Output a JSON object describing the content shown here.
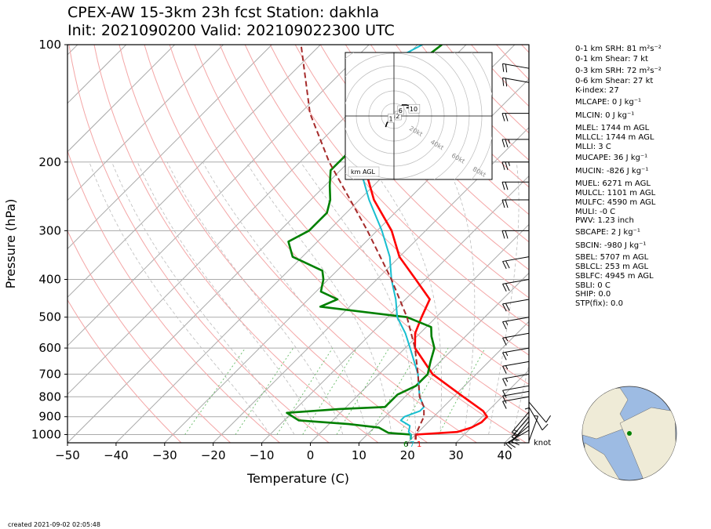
{
  "header": {
    "title_line1": "CPEX-AW 15-3km  23h fcst  Station: dakhla",
    "title_line2": "Init: 2021090200  Valid: 202109022300 UTC"
  },
  "footer": {
    "created": "created 2021-09-02 02:05:48"
  },
  "colors": {
    "temperature": "#ff0000",
    "dewpoint": "#008000",
    "wetbulb": "#17becf",
    "parcel": "#a52a2a",
    "isotherm": "#aaaaaa",
    "dry_adiabat": "#f4a6a6",
    "moist_adiabat": "#bbbbbb",
    "mixing_ratio": "#66bb66",
    "globe_water": "#9dbbe3",
    "globe_land": "#efebd7"
  },
  "chart_data": {
    "type": "line",
    "subtype": "skew-t log-p",
    "xlabel": "Temperature (C)",
    "ylabel": "Pressure (hPa)",
    "xlim": [
      -50,
      45
    ],
    "ylim": [
      1050,
      100
    ],
    "y_scale": "log",
    "x_ticks": [
      "−50",
      "−40",
      "−30",
      "−20",
      "−10",
      "0",
      "10",
      "20",
      "30",
      "40"
    ],
    "x_tick_values": [
      -50,
      -40,
      -30,
      -20,
      -10,
      0,
      10,
      20,
      30,
      40
    ],
    "y_ticks": [
      "100",
      "200",
      "300",
      "400",
      "500",
      "600",
      "700",
      "800",
      "900",
      "1000"
    ],
    "y_tick_values": [
      100,
      200,
      300,
      400,
      500,
      600,
      700,
      800,
      900,
      1000
    ],
    "grid": true,
    "series": [
      {
        "key": "temperature",
        "points": [
          [
            1030,
            21
          ],
          [
            1000,
            20
          ],
          [
            985,
            28
          ],
          [
            960,
            30
          ],
          [
            930,
            31
          ],
          [
            900,
            31
          ],
          [
            870,
            29
          ],
          [
            800,
            22
          ],
          [
            700,
            11
          ],
          [
            600,
            2
          ],
          [
            550,
            -1
          ],
          [
            500,
            -3
          ],
          [
            450,
            -5
          ],
          [
            400,
            -12
          ],
          [
            350,
            -20
          ],
          [
            300,
            -27
          ],
          [
            250,
            -37
          ],
          [
            200,
            -47
          ],
          [
            150,
            -59
          ],
          [
            125,
            -63
          ]
        ]
      },
      {
        "key": "dewpoint",
        "points": [
          [
            1030,
            20
          ],
          [
            1000,
            19
          ],
          [
            990,
            14
          ],
          [
            960,
            11
          ],
          [
            940,
            4
          ],
          [
            920,
            -7
          ],
          [
            880,
            -11
          ],
          [
            860,
            -1
          ],
          [
            850,
            8
          ],
          [
            820,
            8
          ],
          [
            790,
            8
          ],
          [
            750,
            10
          ],
          [
            700,
            10
          ],
          [
            650,
            8
          ],
          [
            600,
            6
          ],
          [
            560,
            3
          ],
          [
            530,
            1
          ],
          [
            500,
            -6
          ],
          [
            470,
            -26
          ],
          [
            450,
            -24
          ],
          [
            430,
            -29
          ],
          [
            400,
            -31
          ],
          [
            380,
            -33
          ],
          [
            350,
            -42
          ],
          [
            320,
            -46
          ],
          [
            300,
            -44
          ],
          [
            270,
            -44
          ],
          [
            250,
            -46
          ],
          [
            230,
            -49
          ],
          [
            210,
            -52
          ],
          [
            190,
            -52
          ],
          [
            160,
            -52
          ],
          [
            150,
            -58
          ],
          [
            130,
            -59
          ],
          [
            120,
            -57
          ],
          [
            110,
            -56
          ],
          [
            100,
            -55
          ]
        ]
      },
      {
        "key": "wetbulb",
        "points": [
          [
            1030,
            20
          ],
          [
            1000,
            19
          ],
          [
            985,
            18
          ],
          [
            950,
            17
          ],
          [
            920,
            14
          ],
          [
            900,
            14
          ],
          [
            870,
            16
          ],
          [
            850,
            16
          ],
          [
            800,
            13
          ],
          [
            700,
            8
          ],
          [
            600,
            1
          ],
          [
            550,
            -3
          ],
          [
            500,
            -8
          ],
          [
            450,
            -12
          ],
          [
            400,
            -17
          ],
          [
            350,
            -22
          ],
          [
            300,
            -29
          ],
          [
            250,
            -38
          ],
          [
            200,
            -48
          ],
          [
            150,
            -60
          ],
          [
            125,
            -64
          ],
          [
            110,
            -62
          ],
          [
            100,
            -59
          ]
        ]
      },
      {
        "key": "parcel",
        "dashed": true,
        "points": [
          [
            1030,
            21
          ],
          [
            1000,
            20
          ],
          [
            950,
            19
          ],
          [
            900,
            18
          ],
          [
            850,
            16
          ],
          [
            800,
            13
          ],
          [
            700,
            8
          ],
          [
            600,
            2
          ],
          [
            500,
            -6
          ],
          [
            400,
            -17
          ],
          [
            300,
            -32
          ],
          [
            200,
            -54
          ],
          [
            150,
            -68
          ],
          [
            100,
            -84
          ]
        ]
      }
    ],
    "surface_labels": {
      "dewpoint": "6",
      "wetbulb": "7",
      "temperature": "1"
    },
    "hodograph": {
      "labels": [
        "1",
        "2",
        "6",
        "10"
      ],
      "ring_labels": [
        "20kt",
        "40kt",
        "60kt",
        "80kt"
      ],
      "points": [
        [
          -6,
          -8
        ],
        [
          -5,
          -5
        ],
        [
          -3,
          -3
        ],
        [
          -1,
          -2
        ],
        [
          2,
          0
        ],
        [
          4,
          3
        ],
        [
          6,
          8
        ],
        [
          9,
          8
        ],
        [
          13,
          7
        ],
        [
          18,
          8
        ],
        [
          14,
          6
        ],
        [
          9,
          6
        ]
      ],
      "label_positions": [
        [
          -2,
          -2
        ],
        [
          3,
          0
        ],
        [
          5,
          4
        ],
        [
          13,
          5
        ]
      ],
      "footer": "km AGL"
    },
    "wind_unit": "knot",
    "wind_barbs": [
      {
        "p": 1040,
        "speed": 8,
        "dir": 200
      },
      {
        "p": 1000,
        "speed": 8,
        "dir": 180
      },
      {
        "p": 975,
        "speed": 10,
        "dir": 60
      },
      {
        "p": 950,
        "speed": 15,
        "dir": 50
      },
      {
        "p": 925,
        "speed": 15,
        "dir": 40
      },
      {
        "p": 900,
        "speed": 15,
        "dir": 40
      },
      {
        "p": 875,
        "speed": 15,
        "dir": 40
      },
      {
        "p": 850,
        "speed": 10,
        "dir": 330
      },
      {
        "p": 825,
        "speed": 10,
        "dir": 320
      },
      {
        "p": 800,
        "speed": 10,
        "dir": 80
      },
      {
        "p": 775,
        "speed": 10,
        "dir": 80
      },
      {
        "p": 750,
        "speed": 10,
        "dir": 80
      },
      {
        "p": 700,
        "speed": 15,
        "dir": 80
      },
      {
        "p": 650,
        "speed": 15,
        "dir": 80
      },
      {
        "p": 600,
        "speed": 15,
        "dir": 80
      },
      {
        "p": 550,
        "speed": 15,
        "dir": 80
      },
      {
        "p": 500,
        "speed": 15,
        "dir": 80
      },
      {
        "p": 450,
        "speed": 20,
        "dir": 80
      },
      {
        "p": 400,
        "speed": 20,
        "dir": 80
      },
      {
        "p": 350,
        "speed": 20,
        "dir": 80
      },
      {
        "p": 300,
        "speed": 20,
        "dir": 90
      },
      {
        "p": 250,
        "speed": 20,
        "dir": 90
      },
      {
        "p": 225,
        "speed": 20,
        "dir": 90
      },
      {
        "p": 200,
        "speed": 25,
        "dir": 90
      },
      {
        "p": 175,
        "speed": 25,
        "dir": 90
      },
      {
        "p": 150,
        "speed": 20,
        "dir": 90
      },
      {
        "p": 125,
        "speed": 20,
        "dir": 100
      },
      {
        "p": 115,
        "speed": 20,
        "dir": 100
      },
      {
        "p": 100,
        "speed": 0,
        "dir": 0
      }
    ]
  },
  "indices": {
    "srh_01": "0-1 km SRH: 81 m²s⁻²",
    "shear_01": "0-1 km Shear: 7 kt",
    "srh_03": "0-3 km SRH: 72 m²s⁻²",
    "shear_06": "0-6 km Shear: 27 kt",
    "kindex": "K-index: 27",
    "mlcape": "MLCAPE: 0 J kg⁻¹",
    "mlcin": "MLCIN: 0 J kg⁻¹",
    "mlel": "MLEL: 1744 m AGL",
    "mllcl": "MLLCL: 1744 m AGL",
    "mlli": "MLLI: 3 C",
    "mucape": "MUCAPE: 36 J kg⁻¹",
    "mucin": "MUCIN: -826 J kg⁻¹",
    "muel": "MUEL: 6271 m AGL",
    "mulcl": "MULCL: 1101 m AGL",
    "mulfc": "MULFC: 4590 m AGL",
    "muli": "MULI: -0 C",
    "pwv": "PWV: 1.23 inch",
    "sbcape": "SBCAPE: 2 J kg⁻¹",
    "sbcin": "SBCIN: -980 J kg⁻¹",
    "sbel": "SBEL: 5707 m AGL",
    "sblcl": "SBLCL: 253 m AGL",
    "sblfc": "SBLFC: 4945 m AGL",
    "sbli": "SBLI: 0 C",
    "ship": "SHIP: 0.0",
    "stp": "STP(fix): 0.0"
  },
  "globe": {
    "marker_color": "#008000"
  }
}
